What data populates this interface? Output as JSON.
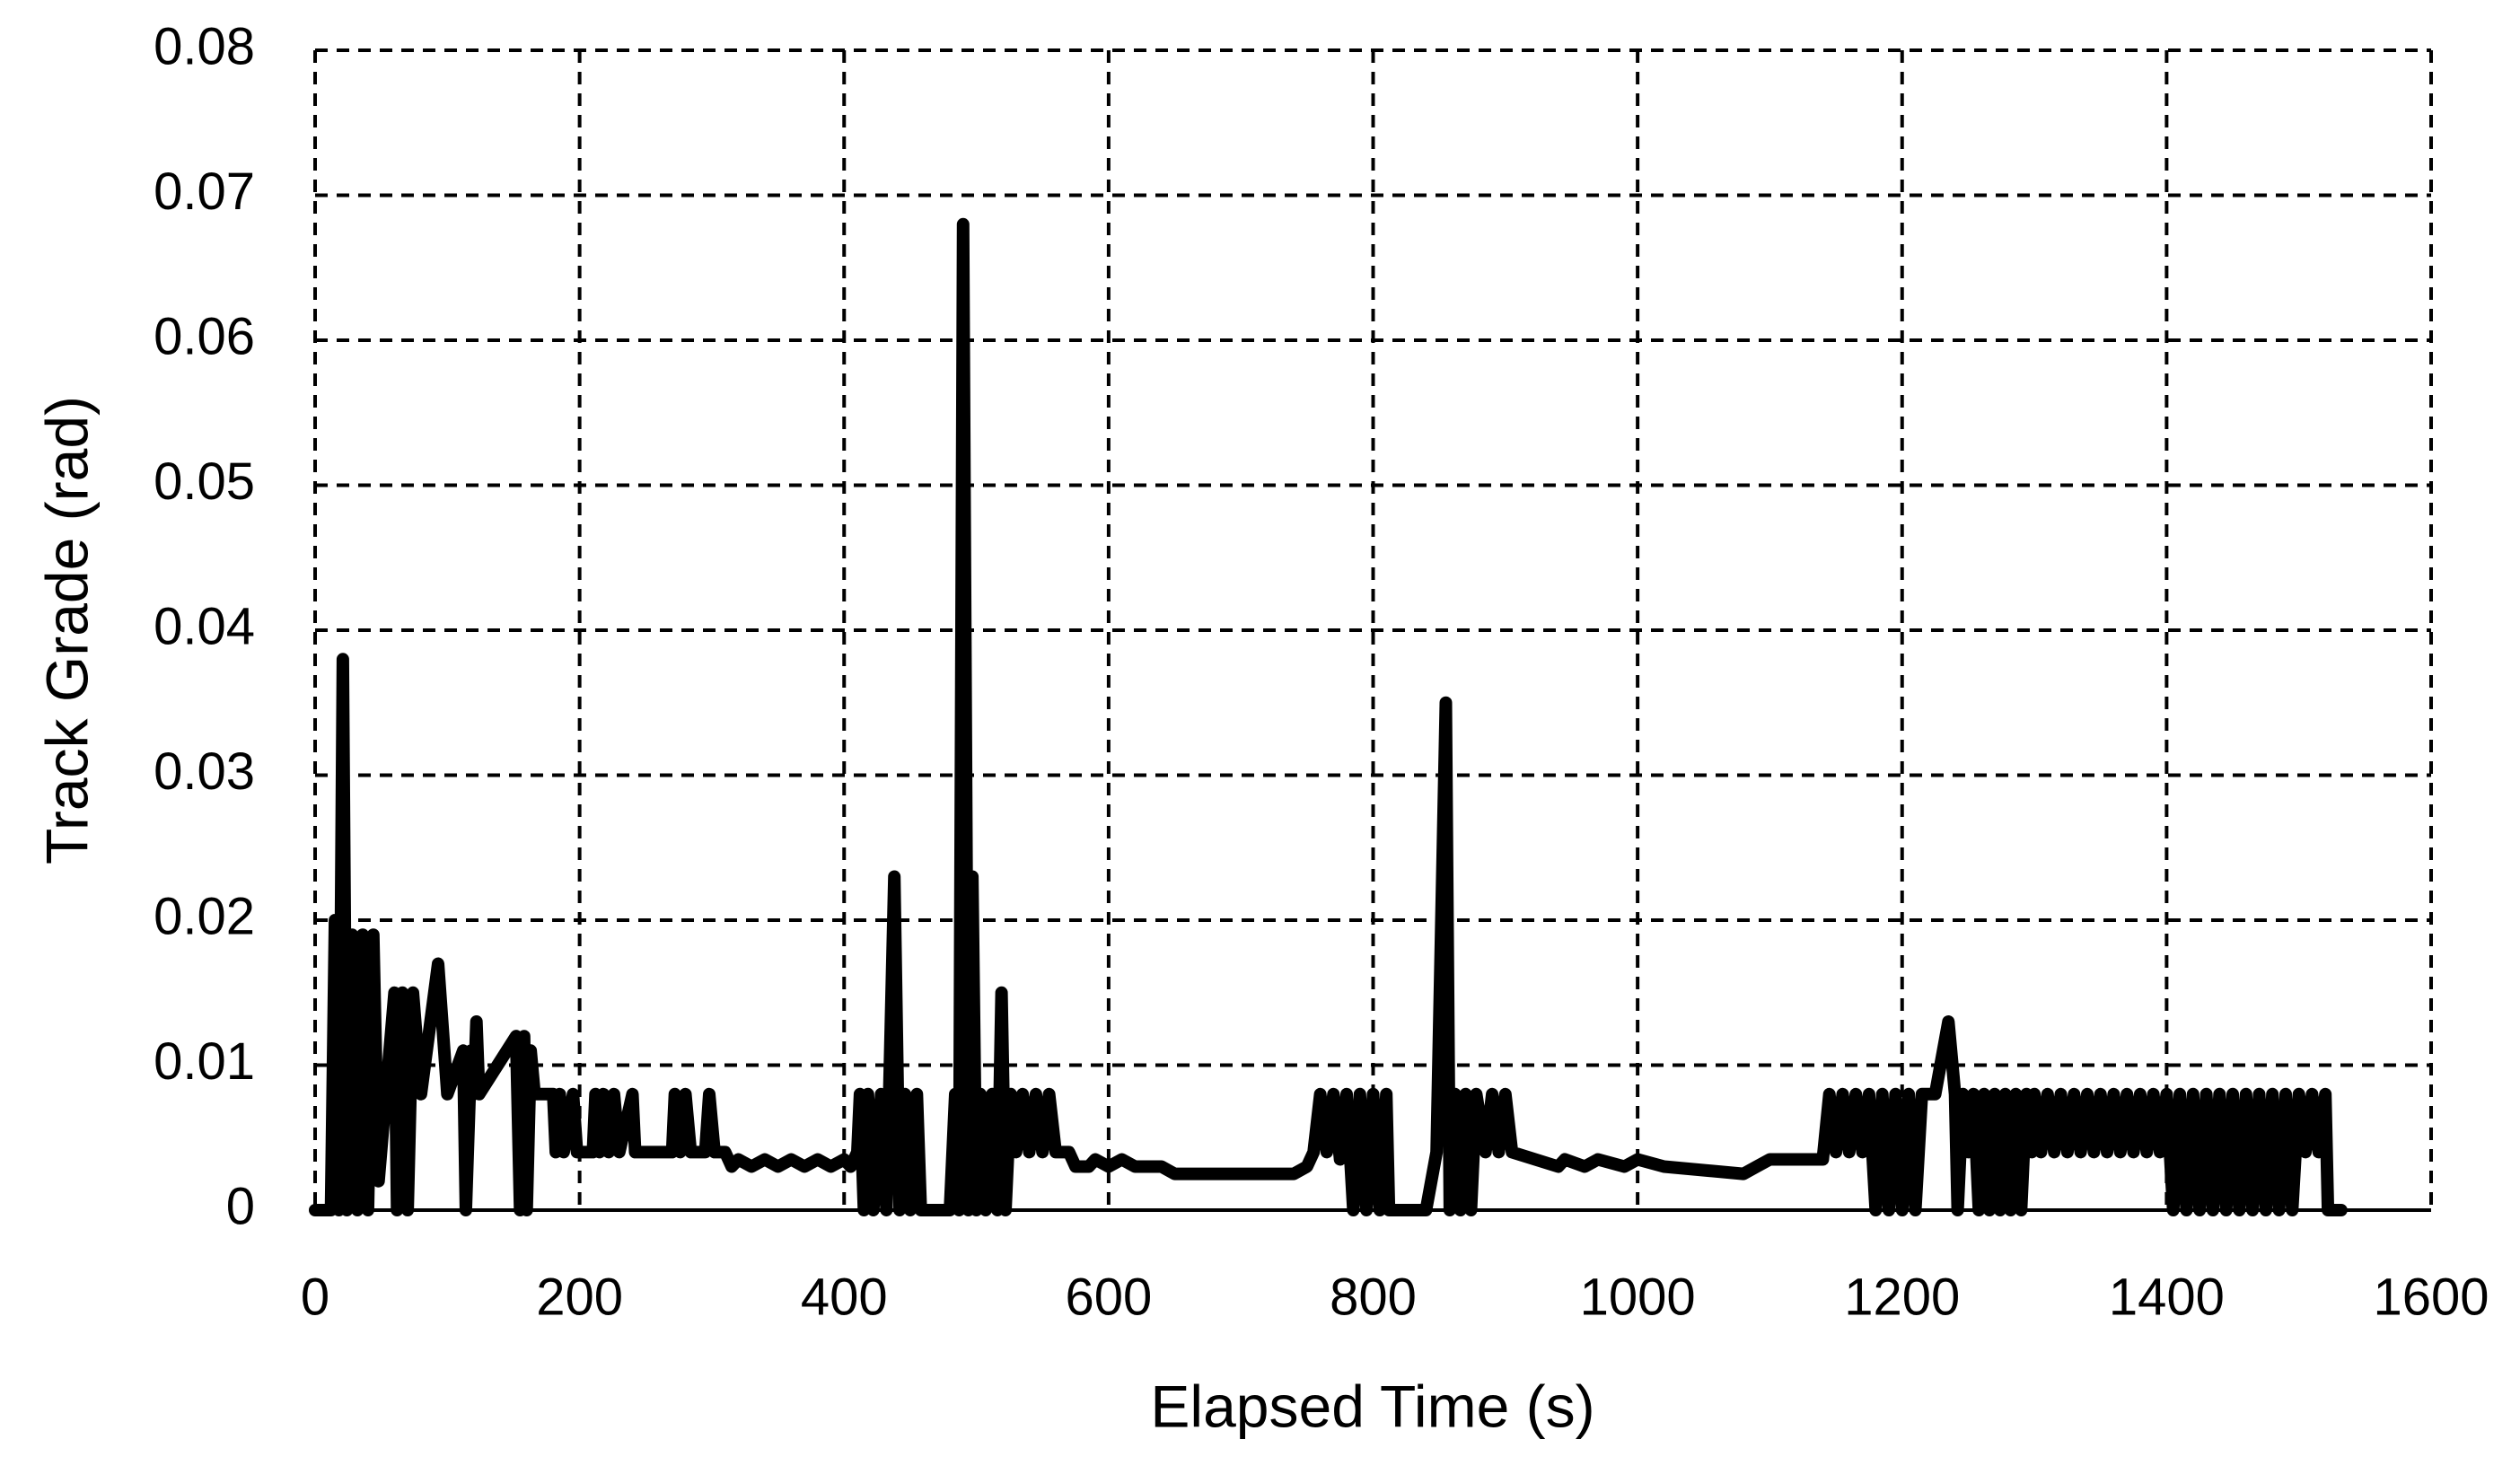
{
  "chart_data": {
    "type": "line",
    "xlabel": "Elapsed Time (s)",
    "ylabel": "Track Grade (rad)",
    "xlim": [
      0,
      1600
    ],
    "xticks": [
      0,
      200,
      400,
      600,
      800,
      1000,
      1200,
      1400,
      1600
    ],
    "ylim": [
      0,
      0.08
    ],
    "yticks": [
      0,
      0.01,
      0.02,
      0.03,
      0.04,
      0.05,
      0.06,
      0.07,
      0.08
    ],
    "grid": true,
    "series": [
      {
        "name": null,
        "color": "#000000",
        "x": [
          0,
          12,
          15,
          18,
          21,
          24,
          28,
          32,
          36,
          40,
          44,
          48,
          60,
          62,
          66,
          70,
          74,
          80,
          93,
          100,
          112,
          114,
          118,
          120,
          122,
          124,
          152,
          155,
          158,
          160,
          163,
          166,
          180,
          182,
          185,
          188,
          195,
          198,
          210,
          212,
          215,
          218,
          222,
          226,
          230,
          240,
          242,
          270,
          272,
          276,
          280,
          284,
          295,
          298,
          302,
          310,
          315,
          320,
          330,
          340,
          350,
          360,
          370,
          380,
          390,
          400,
          405,
          410,
          412,
          415,
          418,
          422,
          428,
          432,
          438,
          442,
          446,
          450,
          455,
          458,
          480,
          484,
          487,
          490,
          494,
          497,
          500,
          503,
          507,
          512,
          516,
          519,
          522,
          526,
          530,
          535,
          540,
          545,
          550,
          555,
          560,
          570,
          575,
          585,
          590,
          600,
          610,
          620,
          640,
          650,
          700,
          740,
          750,
          755,
          760,
          765,
          770,
          775,
          780,
          785,
          790,
          795,
          800,
          805,
          810,
          812,
          840,
          848,
          855,
          858,
          862,
          866,
          870,
          874,
          878,
          885,
          890,
          895,
          900,
          905,
          940,
          945,
          960,
          970,
          990,
          1000,
          1020,
          1080,
          1090,
          1100,
          1140,
          1145,
          1150,
          1155,
          1160,
          1165,
          1170,
          1175,
          1180,
          1185,
          1190,
          1195,
          1200,
          1205,
          1210,
          1215,
          1225,
          1235,
          1240,
          1242,
          1246,
          1250,
          1254,
          1258,
          1262,
          1266,
          1270,
          1274,
          1278,
          1282,
          1286,
          1290,
          1294,
          1298,
          1300,
          1305,
          1310,
          1315,
          1320,
          1325,
          1330,
          1335,
          1340,
          1345,
          1350,
          1355,
          1360,
          1365,
          1370,
          1375,
          1380,
          1385,
          1390,
          1395,
          1400,
          1405,
          1410,
          1415,
          1420,
          1425,
          1430,
          1435,
          1440,
          1445,
          1450,
          1455,
          1460,
          1465,
          1470,
          1475,
          1480,
          1485,
          1490,
          1495,
          1500,
          1505,
          1510,
          1515,
          1520,
          1522,
          1532
        ],
        "values": [
          0,
          0,
          0.02,
          0,
          0.038,
          0,
          0.019,
          0,
          0.019,
          0,
          0.019,
          0.002,
          0.015,
          0,
          0.015,
          0,
          0.015,
          0.008,
          0.017,
          0.008,
          0.011,
          0,
          0.011,
          0.008,
          0.013,
          0.008,
          0.012,
          0,
          0.012,
          0,
          0.011,
          0.008,
          0.008,
          0.004,
          0.008,
          0.004,
          0.008,
          0.004,
          0.004,
          0.008,
          0.004,
          0.008,
          0.004,
          0.008,
          0.004,
          0.008,
          0.004,
          0.004,
          0.008,
          0.004,
          0.008,
          0.004,
          0.004,
          0.008,
          0.004,
          0.004,
          0.003,
          0.0035,
          0.003,
          0.0035,
          0.003,
          0.0035,
          0.003,
          0.0035,
          0.003,
          0.0035,
          0.003,
          0.004,
          0.008,
          0,
          0.008,
          0,
          0.008,
          0,
          0.023,
          0,
          0.008,
          0,
          0.008,
          0,
          0,
          0.008,
          0,
          0.068,
          0,
          0.023,
          0,
          0.008,
          0,
          0.008,
          0,
          0.015,
          0,
          0.008,
          0.004,
          0.008,
          0.004,
          0.008,
          0.004,
          0.008,
          0.004,
          0.004,
          0.003,
          0.003,
          0.0035,
          0.003,
          0.0035,
          0.003,
          0.003,
          0.0025,
          0.0025,
          0.0025,
          0.003,
          0.004,
          0.008,
          0.004,
          0.008,
          0.0035,
          0.008,
          0,
          0.008,
          0,
          0.008,
          0,
          0.008,
          0,
          0,
          0.004,
          0.035,
          0,
          0.008,
          0,
          0.008,
          0,
          0.008,
          0.004,
          0.008,
          0.004,
          0.008,
          0.004,
          0.003,
          0.0035,
          0.003,
          0.0035,
          0.003,
          0.0035,
          0.003,
          0.0025,
          0.003,
          0.0035,
          0.0035,
          0.008,
          0.004,
          0.008,
          0.004,
          0.008,
          0.004,
          0.008,
          0,
          0.008,
          0,
          0.008,
          0,
          0.008,
          0,
          0.008,
          0.008,
          0.013,
          0.008,
          0,
          0.008,
          0.004,
          0.008,
          0,
          0.008,
          0,
          0.008,
          0,
          0.008,
          0,
          0.008,
          0,
          0.008,
          0.004,
          0.008,
          0.004,
          0.008,
          0.004,
          0.008,
          0.004,
          0.008,
          0.004,
          0.008,
          0.004,
          0.008,
          0.004,
          0.008,
          0.004,
          0.008,
          0.004,
          0.008,
          0.004,
          0.008,
          0.004,
          0.008,
          0,
          0.008,
          0,
          0.008,
          0,
          0.008,
          0,
          0.008,
          0,
          0.008,
          0,
          0.008,
          0,
          0.008,
          0,
          0.008,
          0,
          0.008,
          0,
          0.008,
          0.004,
          0.008,
          0.004,
          0.008,
          0,
          0
        ]
      }
    ]
  }
}
